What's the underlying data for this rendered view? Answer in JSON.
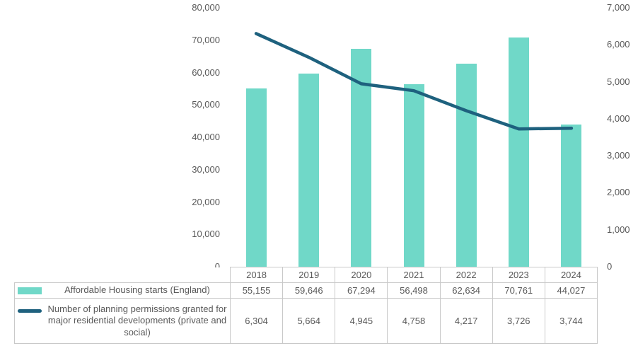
{
  "chart_data": {
    "type": "combo-bar-line",
    "title": "",
    "xlabel": "",
    "ylabel": "",
    "grid": false,
    "legend_position": "bottom-data-table",
    "categories": [
      "2018",
      "2019",
      "2020",
      "2021",
      "2022",
      "2023",
      "2024"
    ],
    "series": [
      {
        "name": "Affordable Housing starts (England)",
        "type": "bar",
        "axis": "left",
        "color": "#70D8C8",
        "values": [
          55155,
          59646,
          67294,
          56498,
          62634,
          70761,
          44027
        ],
        "value_labels": [
          "55,155",
          "59,646",
          "67,294",
          "56,498",
          "62,634",
          "70,761",
          "44,027"
        ]
      },
      {
        "name": "Number of planning permissions granted for major residential developments (private and social)",
        "type": "line",
        "axis": "right",
        "color": "#1E617E",
        "values": [
          6304,
          5664,
          4945,
          4758,
          4217,
          3726,
          3744
        ],
        "value_labels": [
          "6,304",
          "5,664",
          "4,945",
          "4,758",
          "4,217",
          "3,726",
          "3,744"
        ]
      }
    ],
    "left_axis": {
      "min": 0,
      "max": 80000,
      "step": 10000,
      "tick_labels": [
        "0",
        "10,000",
        "20,000",
        "30,000",
        "40,000",
        "50,000",
        "60,000",
        "70,000",
        "80,000"
      ]
    },
    "right_axis": {
      "min": 0,
      "max": 7000,
      "step": 1000,
      "tick_labels": [
        "0",
        "1,000",
        "2,000",
        "3,000",
        "4,000",
        "5,000",
        "6,000",
        "7,000"
      ]
    }
  },
  "colors": {
    "bar": "#70D8C8",
    "line": "#1E617E",
    "text": "#595959",
    "table_border": "#C9C9C9",
    "background": "#FFFFFF"
  }
}
